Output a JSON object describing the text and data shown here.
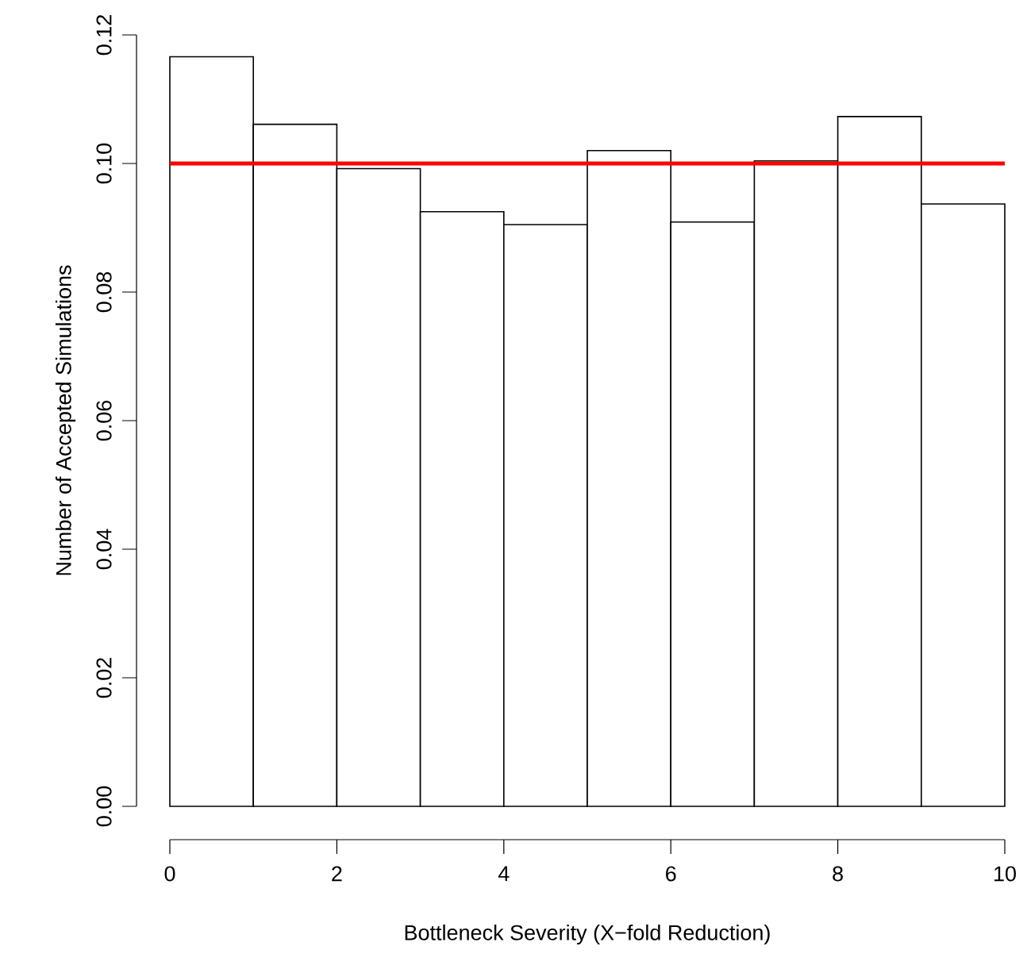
{
  "chart_data": {
    "type": "histogram",
    "xlabel": "Bottleneck Severity (X−fold Reduction)",
    "ylabel": "Number of Accepted Simulations",
    "bins": [
      0,
      1,
      2,
      3,
      4,
      5,
      6,
      7,
      8,
      9,
      10
    ],
    "values": [
      0.1166,
      0.1061,
      0.0992,
      0.0925,
      0.0905,
      0.102,
      0.0909,
      0.1004,
      0.1073,
      0.0937
    ],
    "color": "#ffffff",
    "xlim": [
      0,
      10
    ],
    "ylim": [
      0,
      0.12
    ],
    "xticks": [
      0,
      2,
      4,
      6,
      8,
      10
    ],
    "yticks": [
      {
        "value": 0,
        "label": "0.00"
      },
      {
        "value": 0.02,
        "label": "0.02"
      },
      {
        "value": 0.04,
        "label": "0.04"
      },
      {
        "value": 0.06,
        "label": "0.06"
      },
      {
        "value": 0.08,
        "label": "0.08"
      },
      {
        "value": 0.1,
        "label": "0.10"
      },
      {
        "value": 0.12,
        "label": "0.12"
      }
    ],
    "ref_lines": [
      {
        "axis": "y",
        "value": 0.1,
        "color": "#ff0000"
      }
    ]
  }
}
